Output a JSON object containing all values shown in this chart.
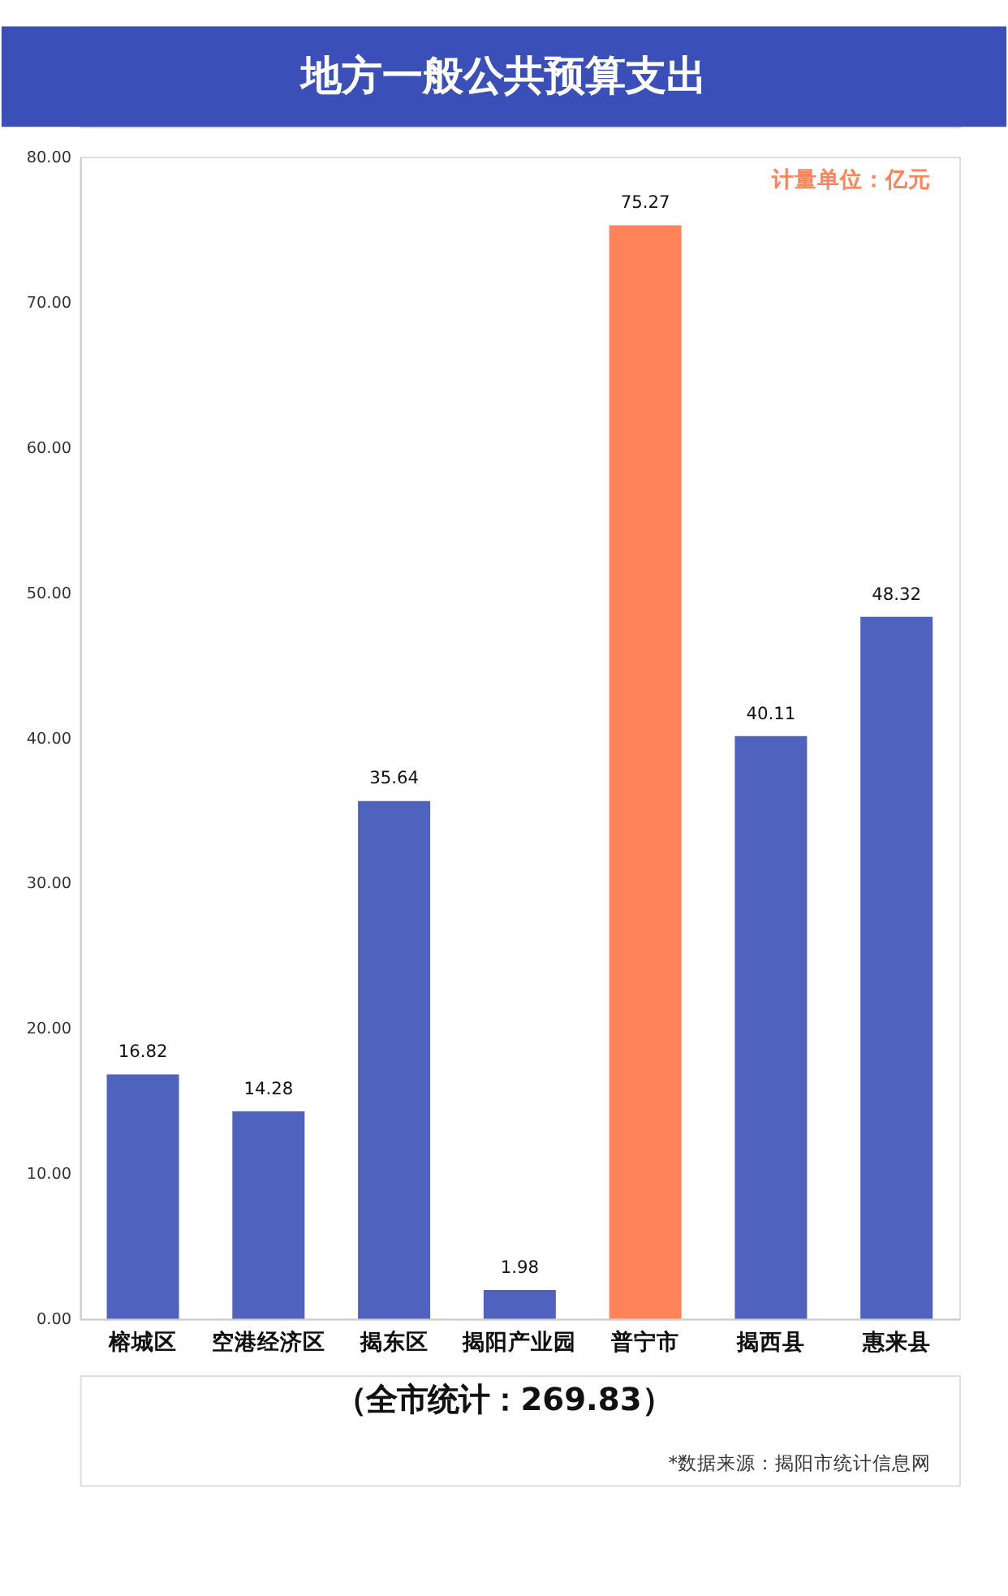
{
  "chart_data": {
    "type": "bar",
    "title": "地方一般公共预算支出",
    "categories": [
      "榕城区",
      "空港经济区",
      "揭东区",
      "揭阳产业园",
      "普宁市",
      "揭西县",
      "惠来县"
    ],
    "values": [
      16.82,
      14.28,
      35.64,
      1.98,
      75.27,
      40.11,
      48.32
    ],
    "colors": [
      "#4f62be",
      "#4f62be",
      "#4f62be",
      "#4f62be",
      "#ff8258",
      "#4f62be",
      "#4f62be"
    ],
    "ylim": [
      0,
      80
    ],
    "yticks": [
      {
        "value": 0,
        "label": "0.00"
      },
      {
        "value": 10,
        "label": "10.00"
      },
      {
        "value": 20,
        "label": "20.00"
      },
      {
        "value": 30,
        "label": "30.00"
      },
      {
        "value": 40,
        "label": "40.00"
      },
      {
        "value": 50,
        "label": "50.00"
      },
      {
        "value": 60,
        "label": "60.00"
      },
      {
        "value": 70,
        "label": "70.00"
      },
      {
        "value": 80,
        "label": "80.00"
      }
    ],
    "grid": false,
    "data_labels": true,
    "annotations": [
      "计量单位：亿元",
      "（全市统计：269.83）",
      "*数据来源：揭阳市统计信息网"
    ]
  }
}
